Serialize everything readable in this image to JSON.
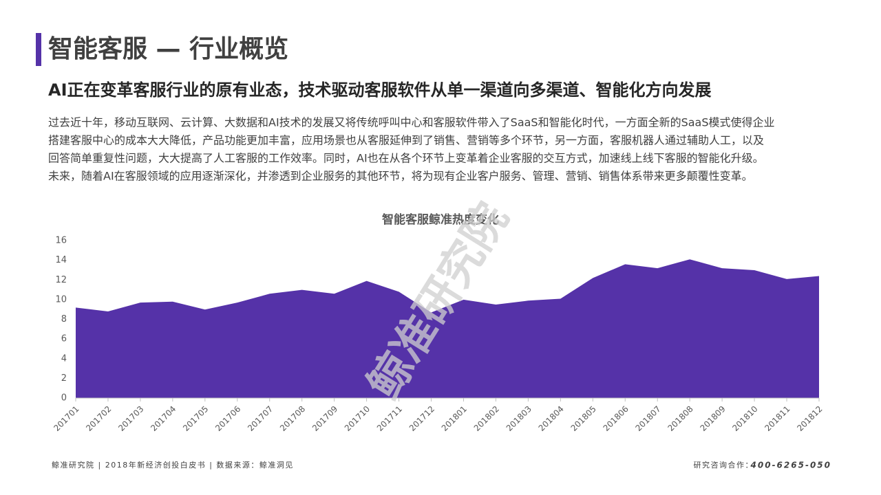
{
  "header": {
    "title": "智能客服 — 行业概览",
    "subtitle": "AI正在变革客服行业的原有业态，技术驱动客服软件从单一渠道向多渠道、智能化方向发展"
  },
  "paragraph": [
    "过去近十年，移动互联网、云计算、大数据和AI技术的发展又将传统呼叫中心和客服软件带入了SaaS和智能化时代，一方面全新的SaaS模式使得企业",
    "搭建客服中心的成本大大降低，产品功能更加丰富，应用场景也从客服延伸到了销售、营销等多个环节，另一方面，客服机器人通过辅助人工，以及",
    "回答简单重复性问题，大大提高了人工客服的工作效率。同时，AI也在从各个环节上变革着企业客服的交互方式，加速线上线下客服的智能化升级。",
    "未来，随着AI在客服领域的应用逐渐深化，并渗透到企业服务的其他环节，将为现有企业客户服务、管理、营销、销售体系带来更多颠覆性变革。"
  ],
  "watermark": "鲸准研究院",
  "chart_data": {
    "type": "area",
    "title": "智能客服鲸准热度变化",
    "categories": [
      "201701",
      "201702",
      "201703",
      "201704",
      "201705",
      "201706",
      "201707",
      "201708",
      "201709",
      "201710",
      "201711",
      "201712",
      "201801",
      "201802",
      "201803",
      "201804",
      "201805",
      "201806",
      "201807",
      "201808",
      "201809",
      "201810",
      "201811",
      "201812"
    ],
    "values": [
      9.2,
      8.8,
      9.7,
      9.8,
      9.0,
      9.7,
      10.6,
      11.0,
      10.6,
      11.9,
      10.8,
      8.7,
      10.0,
      9.5,
      9.9,
      10.1,
      12.2,
      13.6,
      13.2,
      14.1,
      13.2,
      13.0,
      12.1,
      12.4
    ],
    "color": "#5532a8",
    "ylim": [
      0,
      16
    ],
    "yticks": [
      0,
      2,
      4,
      6,
      8,
      10,
      12,
      14,
      16
    ],
    "grid": false
  },
  "footer": {
    "left": "鲸准研究院 | 2018年新经济创投白皮书 | 数据来源：鲸准洞见",
    "contact_label": "研究咨询合作：",
    "contact_number": "400-6265-050"
  }
}
